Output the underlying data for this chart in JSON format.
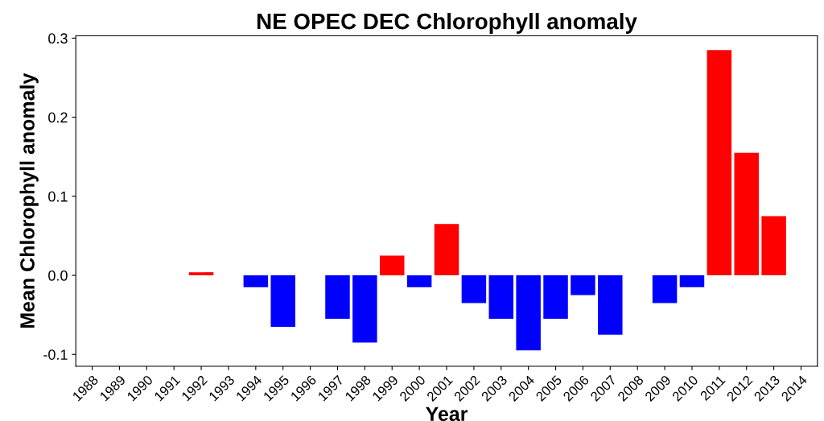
{
  "chart_data": {
    "type": "bar",
    "title": "NE OPEC DEC Chlorophyll anomaly",
    "xlabel": "Year",
    "ylabel": "Mean Chlorophyll anomaly",
    "categories": [
      "1988",
      "1989",
      "1990",
      "1991",
      "1992",
      "1993",
      "1994",
      "1995",
      "1996",
      "1997",
      "1998",
      "1999",
      "2000",
      "2001",
      "2002",
      "2003",
      "2004",
      "2005",
      "2006",
      "2007",
      "2008",
      "2009",
      "2010",
      "2011",
      "2012",
      "2013",
      "2014"
    ],
    "values": [
      null,
      null,
      null,
      null,
      0.004,
      null,
      -0.015,
      -0.065,
      null,
      -0.055,
      -0.085,
      0.025,
      -0.015,
      0.065,
      -0.035,
      -0.055,
      -0.095,
      -0.055,
      -0.025,
      -0.075,
      null,
      -0.035,
      -0.015,
      0.285,
      0.155,
      0.075,
      null
    ],
    "colors": [
      null,
      null,
      null,
      null,
      "#ff0000",
      null,
      "#0000ff",
      "#0000ff",
      null,
      "#0000ff",
      "#0000ff",
      "#ff0000",
      "#0000ff",
      "#ff0000",
      "#0000ff",
      "#0000ff",
      "#0000ff",
      "#0000ff",
      "#0000ff",
      "#0000ff",
      null,
      "#0000ff",
      "#0000ff",
      "#ff0000",
      "#ff0000",
      "#ff0000",
      null
    ],
    "ylim": [
      -0.115,
      0.303
    ],
    "yticks": [
      {
        "value": -0.1,
        "label": "-0.1"
      },
      {
        "value": 0.0,
        "label": "0.0"
      },
      {
        "value": 0.1,
        "label": "0.1"
      },
      {
        "value": 0.2,
        "label": "0.2"
      },
      {
        "value": 0.3,
        "label": "0.3"
      }
    ],
    "grid": false
  }
}
